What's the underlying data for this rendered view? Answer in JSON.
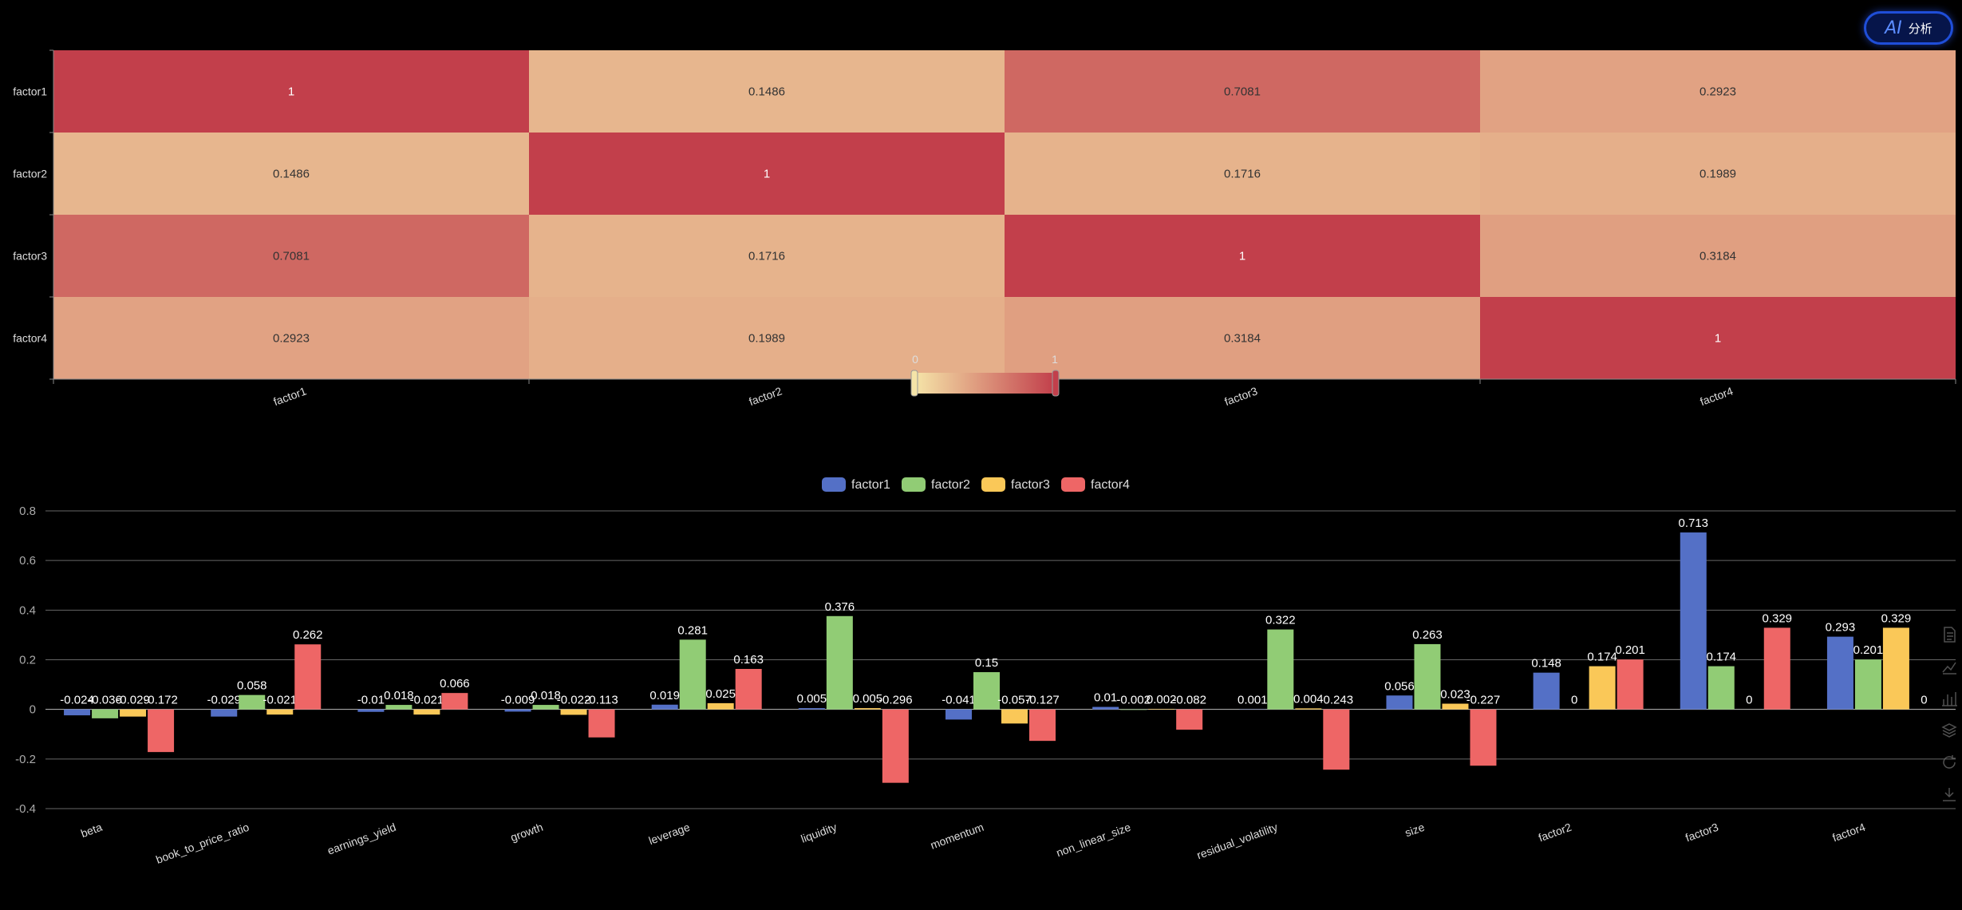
{
  "ai_button": {
    "icon": "ai-icon",
    "label": "分析"
  },
  "colors": {
    "series": [
      "#5470c6",
      "#91cc75",
      "#fac858",
      "#ee6666"
    ],
    "heat_low": "#f5e4a8",
    "heat_high": "#c23f4b",
    "background": "#000000"
  },
  "toolbox": [
    "data-view-icon",
    "line-chart-icon",
    "bar-chart-icon",
    "stack-icon",
    "restore-icon",
    "download-icon"
  ],
  "chart_data": [
    {
      "type": "heatmap",
      "x_categories": [
        "factor1",
        "factor2",
        "factor3",
        "factor4"
      ],
      "y_categories": [
        "factor1",
        "factor2",
        "factor3",
        "factor4"
      ],
      "values": [
        [
          "1",
          "0.1486",
          "0.7081",
          "0.2923"
        ],
        [
          "0.1486",
          "1",
          "0.1716",
          "0.1989"
        ],
        [
          "0.7081",
          "0.1716",
          "1",
          "0.3184"
        ],
        [
          "0.2923",
          "0.1989",
          "0.3184",
          "1"
        ]
      ],
      "visual_map": {
        "min": "0",
        "max": "1"
      }
    },
    {
      "type": "bar",
      "categories": [
        "beta",
        "book_to_price_ratio",
        "earnings_yield",
        "growth",
        "leverage",
        "liquidity",
        "momentum",
        "non_linear_size",
        "residual_volatility",
        "size",
        "factor2",
        "factor3",
        "factor4"
      ],
      "legend_position": "top-center",
      "ylim": [
        -0.4,
        0.8
      ],
      "yticks": [
        "0.8",
        "0.6",
        "0.4",
        "0.2",
        "0",
        "-0.2",
        "-0.4"
      ],
      "grid": true,
      "series": [
        {
          "name": "factor1",
          "values": [
            -0.024,
            -0.029,
            -0.01,
            -0.009,
            0.019,
            0.005,
            -0.041,
            0.01,
            0.001,
            0.056,
            0.148,
            0.713,
            0.293
          ],
          "labels": [
            "-0.024",
            "-0.029",
            "-0.01",
            "-0.009",
            "0.019",
            "0.005",
            "-0.041",
            "0.01",
            "0.001",
            "0.056",
            "0.148",
            "0.713",
            "0.293"
          ]
        },
        {
          "name": "factor2",
          "values": [
            -0.036,
            0.058,
            0.018,
            0.018,
            0.281,
            0.376,
            0.15,
            -0.002,
            0.322,
            0.263,
            0,
            0.174,
            0.201
          ],
          "labels": [
            "-0.036",
            "0.058",
            "0.018",
            "0.018",
            "0.281",
            "0.376",
            "0.15",
            "-0.002",
            "0.322",
            "0.263",
            "0",
            "0.174",
            "0.201"
          ]
        },
        {
          "name": "factor3",
          "values": [
            -0.029,
            -0.021,
            -0.021,
            -0.022,
            0.025,
            0.005,
            -0.057,
            0.002,
            0.004,
            0.023,
            0.174,
            0,
            0.329
          ],
          "labels": [
            "-0.029",
            "-0.021",
            "-0.021",
            "-0.022",
            "0.025",
            "0.005",
            "-0.057",
            "0.002",
            "0.004",
            "0.023",
            "0.174",
            "0",
            "0.329"
          ]
        },
        {
          "name": "factor4",
          "values": [
            -0.172,
            0.262,
            0.066,
            -0.113,
            0.163,
            -0.296,
            -0.127,
            -0.082,
            -0.243,
            -0.227,
            0.201,
            0.329,
            0
          ],
          "labels": [
            "-0.172",
            "0.262",
            "0.066",
            "-0.113",
            "0.163",
            "-0.296",
            "-0.127",
            "-0.082",
            "-0.243",
            "-0.227",
            "0.201",
            "0.329",
            "0"
          ]
        }
      ]
    }
  ]
}
